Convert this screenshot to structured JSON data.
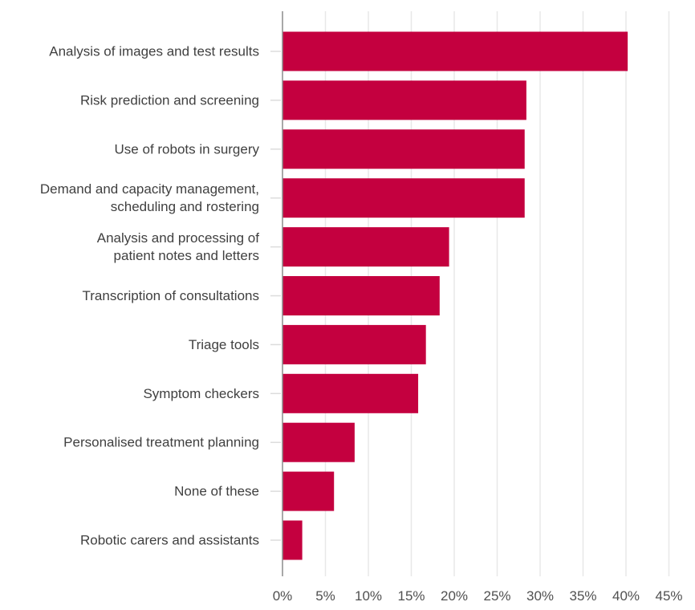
{
  "chart_data": {
    "type": "bar",
    "orientation": "horizontal",
    "title": "",
    "xlabel": "",
    "ylabel": "",
    "xlim": [
      0,
      45
    ],
    "grid": true,
    "legend": "none",
    "bar_color": "#c4003f",
    "x_ticks": [
      "0%",
      "5%",
      "10%",
      "15%",
      "20%",
      "25%",
      "30%",
      "35%",
      "40%",
      "45%"
    ],
    "x_tick_values": [
      0,
      5,
      10,
      15,
      20,
      25,
      30,
      35,
      40,
      45
    ],
    "categories": [
      [
        "Analysis of images and test results"
      ],
      [
        "Risk prediction and screening"
      ],
      [
        "Use of robots in surgery"
      ],
      [
        "Demand and capacity management,",
        "scheduling and rostering"
      ],
      [
        "Analysis and processing of",
        "patient notes and letters"
      ],
      [
        "Transcription of consultations"
      ],
      [
        "Triage tools"
      ],
      [
        "Symptom checkers"
      ],
      [
        "Personalised treatment planning"
      ],
      [
        "None of these"
      ],
      [
        "Robotic carers and assistants"
      ]
    ],
    "values": [
      40.2,
      28.4,
      28.2,
      28.2,
      19.4,
      18.3,
      16.7,
      15.8,
      8.4,
      6.0,
      2.3
    ]
  }
}
